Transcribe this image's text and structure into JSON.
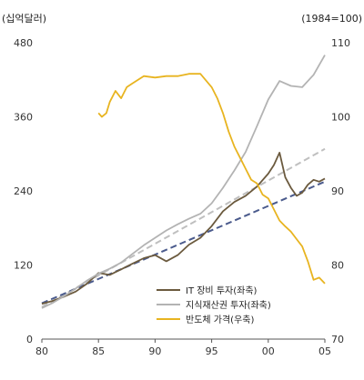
{
  "chart_data": {
    "type": "line",
    "title": "",
    "left_unit": "(십억달러)",
    "right_unit": "(1984=100)",
    "xlabel": "",
    "ylabel": "",
    "x_ticks": [
      {
        "value": 1980,
        "label": "80"
      },
      {
        "value": 1985,
        "label": "85"
      },
      {
        "value": 1990,
        "label": "90"
      },
      {
        "value": 1995,
        "label": "95"
      },
      {
        "value": 2000,
        "label": "00"
      },
      {
        "value": 2005,
        "label": "05"
      }
    ],
    "xlim": [
      1980,
      2005
    ],
    "ylim_left": [
      0,
      480
    ],
    "left_ticks": [
      "0",
      "120",
      "240",
      "360",
      "480"
    ],
    "ylim_right": [
      70,
      110
    ],
    "right_ticks": [
      "70",
      "80",
      "90",
      "100",
      "110"
    ],
    "grid": false,
    "legend_position": "bottom-right",
    "series": [
      {
        "name": "IT 장비 투자(좌축)",
        "axis": "left",
        "color": "#6b5a3e",
        "style": "solid",
        "x": [
          1980,
          1981,
          1982,
          1983,
          1984,
          1985,
          1986,
          1987,
          1988,
          1989,
          1990,
          1991,
          1992,
          1993,
          1994,
          1995,
          1996,
          1997,
          1998,
          1999,
          2000,
          2000.5,
          2001,
          2001.5,
          2002,
          2002.5,
          2003,
          2003.5,
          2004,
          2004.5,
          2005
        ],
        "y": [
          57,
          62,
          69,
          77,
          90,
          107,
          104,
          113,
          122,
          131,
          136,
          126,
          136,
          153,
          164,
          183,
          207,
          222,
          232,
          247,
          268,
          282,
          302,
          262,
          245,
          232,
          237,
          250,
          258,
          255,
          260
        ]
      },
      {
        "name": "지식재산권 투자(좌축)",
        "axis": "left",
        "color": "#b3b3b3",
        "style": "solid",
        "x": [
          1980,
          1981,
          1982,
          1983,
          1984,
          1985,
          1986,
          1987,
          1988,
          1989,
          1990,
          1991,
          1992,
          1993,
          1994,
          1995,
          1996,
          1997,
          1998,
          1999,
          2000,
          2001,
          2002,
          2003,
          2004,
          2005
        ],
        "y": [
          50,
          59,
          70,
          82,
          95,
          106,
          114,
          124,
          138,
          152,
          164,
          176,
          186,
          195,
          203,
          220,
          245,
          273,
          303,
          345,
          388,
          418,
          410,
          408,
          428,
          460
        ]
      },
      {
        "name": "반도체 가격(우축)",
        "axis": "right",
        "color": "#e8b420",
        "style": "solid",
        "x": [
          1985,
          1985.3,
          1985.7,
          1986,
          1986.5,
          1987,
          1987.5,
          1988,
          1989,
          1990,
          1991,
          1992,
          1993,
          1994,
          1995,
          1995.5,
          1996,
          1996.5,
          1997,
          1997.5,
          1998,
          1998.5,
          1999,
          1999.5,
          2000,
          2000.5,
          2001,
          2001.5,
          2002,
          2002.5,
          2003,
          2003.5,
          2004,
          2004.5,
          2005
        ],
        "y": [
          100.5,
          100,
          100.5,
          102,
          103.5,
          102.5,
          104,
          104.5,
          105.5,
          105.3,
          105.5,
          105.5,
          105.8,
          105.8,
          104,
          102.5,
          100.5,
          98,
          96,
          94.5,
          93,
          91.5,
          91,
          89.5,
          89,
          87.5,
          86,
          85.2,
          84.5,
          83.5,
          82.5,
          80.5,
          78,
          78.3,
          77.5
        ]
      },
      {
        "name": "",
        "axis": "left",
        "color": "#bfbfbf",
        "style": "dashed",
        "x": [
          1980,
          2005
        ],
        "y": [
          52,
          308
        ]
      },
      {
        "name": "",
        "axis": "left",
        "color": "#4a5a8c",
        "style": "dashed",
        "x": [
          1980,
          2005
        ],
        "y": [
          58,
          255
        ]
      }
    ]
  }
}
